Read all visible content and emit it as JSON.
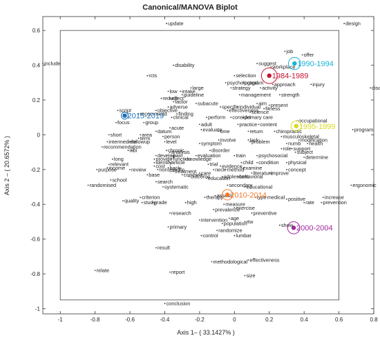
{
  "chart_data": {
    "type": "scatter",
    "title": "Canonical/MANOVA Biplot",
    "xlabel": "Axis 1– ( 33.1427% )",
    "ylabel": "Axis 2 – ( 20.6572% )",
    "xlim": [
      -1.1,
      0.8
    ],
    "ylim": [
      -1.03,
      0.68
    ],
    "xticks": [
      -1,
      -0.8,
      -0.6,
      -0.4,
      -0.2,
      0,
      0.2,
      0.4,
      0.6,
      0.8
    ],
    "xtick_labels": [
      "-1",
      "-0.8",
      "-0.6",
      "-0.4",
      "-0.2",
      "0",
      "0.2",
      "0.4",
      "0.6",
      "0.8"
    ],
    "yticks": [
      -1,
      -0.8,
      -0.6,
      -0.4,
      -0.2,
      0,
      0.2,
      0.4,
      0.6
    ],
    "ytick_labels": [
      "-1",
      "-0.8",
      "-0.6",
      "-0.4",
      "-0.2",
      "0",
      "0.2",
      "0.4",
      "0.6"
    ],
    "grid": false,
    "groups": [
      {
        "label": "1984-1989",
        "x": 0.2,
        "y": 0.34,
        "color": "#c8102e",
        "r": 0.045
      },
      {
        "label": "1990-1994",
        "x": 0.345,
        "y": 0.41,
        "color": "#1ab2d8",
        "r": 0.035
      },
      {
        "label": "1995-1999",
        "x": 0.355,
        "y": 0.05,
        "color": "#d8d820",
        "r": 0.03
      },
      {
        "label": "2000-2004",
        "x": 0.34,
        "y": -0.535,
        "color": "#a0289c",
        "r": 0.035
      },
      {
        "label": "2010-2014",
        "x": -0.04,
        "y": -0.345,
        "color": "#f07828",
        "r": 0.03
      },
      {
        "label": "2015-2019",
        "x": -0.63,
        "y": 0.11,
        "color": "#1f6fb5",
        "r": 0.02
      }
    ],
    "words": [
      {
        "t": "update",
        "x": -0.39,
        "y": 0.64
      },
      {
        "t": "design",
        "x": 0.63,
        "y": 0.64
      },
      {
        "t": "job",
        "x": 0.29,
        "y": 0.48
      },
      {
        "t": "offer",
        "x": 0.39,
        "y": 0.46
      },
      {
        "t": "include",
        "x": -1.1,
        "y": 0.41
      },
      {
        "t": "disability",
        "x": -0.35,
        "y": 0.4
      },
      {
        "t": "suggest",
        "x": 0.13,
        "y": 0.41
      },
      {
        "t": "workplace",
        "x": 0.21,
        "y": 0.39
      },
      {
        "t": "rcts",
        "x": -0.5,
        "y": 0.34
      },
      {
        "t": "selection",
        "x": 0.0,
        "y": 0.34
      },
      {
        "t": "psychological",
        "x": -0.05,
        "y": 0.3
      },
      {
        "t": "program",
        "x": 0.05,
        "y": 0.3
      },
      {
        "t": "approach",
        "x": 0.22,
        "y": 0.29
      },
      {
        "t": "injury",
        "x": 0.44,
        "y": 0.29
      },
      {
        "t": "discuss",
        "x": 0.78,
        "y": 0.27
      },
      {
        "t": "large",
        "x": -0.25,
        "y": 0.27
      },
      {
        "t": "strategy",
        "x": -0.02,
        "y": 0.27
      },
      {
        "t": "activity",
        "x": 0.15,
        "y": 0.27
      },
      {
        "t": "low",
        "x": -0.38,
        "y": 0.25
      },
      {
        "t": "intake",
        "x": -0.31,
        "y": 0.25
      },
      {
        "t": "guideline",
        "x": -0.3,
        "y": 0.23
      },
      {
        "t": "management",
        "x": 0.03,
        "y": 0.23
      },
      {
        "t": "strength",
        "x": 0.26,
        "y": 0.23
      },
      {
        "t": "reduce",
        "x": -0.42,
        "y": 0.21
      },
      {
        "t": "effect",
        "x": -0.37,
        "y": 0.21
      },
      {
        "t": "factor",
        "x": -0.35,
        "y": 0.19
      },
      {
        "t": "subacute",
        "x": -0.22,
        "y": 0.18
      },
      {
        "t": "aim",
        "x": 0.13,
        "y": 0.18
      },
      {
        "t": "present",
        "x": 0.2,
        "y": 0.17
      },
      {
        "t": "adverse",
        "x": -0.38,
        "y": 0.16
      },
      {
        "t": "specific",
        "x": -0.08,
        "y": 0.16
      },
      {
        "t": "individual",
        "x": 0.02,
        "y": 0.16
      },
      {
        "t": "fitness",
        "x": 0.17,
        "y": 0.15
      },
      {
        "t": "objective",
        "x": -0.45,
        "y": 0.14
      },
      {
        "t": "finding",
        "x": -0.33,
        "y": 0.12
      },
      {
        "t": "effectiveness",
        "x": -0.04,
        "y": 0.14
      },
      {
        "t": "science",
        "x": 0.09,
        "y": 0.13
      },
      {
        "t": "script",
        "x": -0.67,
        "y": 0.14
      },
      {
        "t": "recommend",
        "x": -0.55,
        "y": 0.12
      },
      {
        "t": "clinical",
        "x": -0.36,
        "y": 0.1
      },
      {
        "t": "perform",
        "x": -0.16,
        "y": 0.1
      },
      {
        "t": "consider",
        "x": -0.02,
        "y": 0.1
      },
      {
        "t": "primary care",
        "x": 0.05,
        "y": 0.1
      },
      {
        "t": "occupational",
        "x": 0.36,
        "y": 0.08
      },
      {
        "t": "focus",
        "x": -0.68,
        "y": 0.07
      },
      {
        "t": "group",
        "x": -0.52,
        "y": 0.07
      },
      {
        "t": "adult",
        "x": -0.2,
        "y": 0.06
      },
      {
        "t": "practice",
        "x": 0.02,
        "y": 0.06
      },
      {
        "t": "content",
        "x": 0.14,
        "y": 0.06
      },
      {
        "t": "program",
        "x": 0.68,
        "y": 0.03
      },
      {
        "t": "acute",
        "x": -0.37,
        "y": 0.04
      },
      {
        "t": "evaluate",
        "x": -0.19,
        "y": 0.03
      },
      {
        "t": "time",
        "x": -0.09,
        "y": 0.02
      },
      {
        "t": "return",
        "x": 0.08,
        "y": 0.02
      },
      {
        "t": "chiropractic",
        "x": 0.23,
        "y": 0.02
      },
      {
        "t": "short",
        "x": -0.72,
        "y": 0.0
      },
      {
        "t": "area",
        "x": -0.54,
        "y": 0.0
      },
      {
        "t": "datum",
        "x": -0.45,
        "y": 0.02
      },
      {
        "t": "musculoskeletal",
        "x": 0.27,
        "y": -0.01
      },
      {
        "t": "person",
        "x": -0.41,
        "y": -0.01
      },
      {
        "t": "lack",
        "x": 0.08,
        "y": -0.03
      },
      {
        "t": "intermediate",
        "x": -0.73,
        "y": -0.04
      },
      {
        "t": "term",
        "x": -0.55,
        "y": -0.02
      },
      {
        "t": "involve",
        "x": -0.09,
        "y": -0.03
      },
      {
        "t": "problem",
        "x": 0.09,
        "y": -0.04
      },
      {
        "t": "modification",
        "x": 0.37,
        "y": -0.03
      },
      {
        "t": "followup",
        "x": -0.6,
        "y": -0.04
      },
      {
        "t": "level",
        "x": -0.4,
        "y": -0.04
      },
      {
        "t": "numb",
        "x": 0.3,
        "y": -0.05
      },
      {
        "t": "health",
        "x": 0.42,
        "y": -0.05
      },
      {
        "t": "recommendation",
        "x": -0.76,
        "y": -0.07
      },
      {
        "t": "symptom",
        "x": -0.2,
        "y": -0.05
      },
      {
        "t": "role",
        "x": 0.27,
        "y": -0.08
      },
      {
        "t": "support",
        "x": 0.33,
        "y": -0.08
      },
      {
        "t": "chronic",
        "x": -0.39,
        "y": -0.09
      },
      {
        "t": "disorder",
        "x": -0.14,
        "y": -0.09
      },
      {
        "t": "ci",
        "x": -0.61,
        "y": -0.09
      },
      {
        "t": "bi",
        "x": -0.59,
        "y": -0.09
      },
      {
        "t": "analysis",
        "x": -0.37,
        "y": -0.1
      },
      {
        "t": "subject",
        "x": 0.35,
        "y": -0.1
      },
      {
        "t": "develop",
        "x": -0.45,
        "y": -0.12
      },
      {
        "t": "pain",
        "x": -0.36,
        "y": -0.12
      },
      {
        "t": "evaluation",
        "x": -0.22,
        "y": -0.12
      },
      {
        "t": "train",
        "x": 0.0,
        "y": -0.12
      },
      {
        "t": "psychosocial",
        "x": 0.13,
        "y": -0.12
      },
      {
        "t": "determine",
        "x": 0.4,
        "y": -0.13
      },
      {
        "t": "provide",
        "x": -0.46,
        "y": -0.14
      },
      {
        "t": "function",
        "x": -0.36,
        "y": -0.14
      },
      {
        "t": "knowledge",
        "x": -0.28,
        "y": -0.14
      },
      {
        "t": "long",
        "x": -0.7,
        "y": -0.14
      },
      {
        "t": "identify",
        "x": -0.46,
        "y": -0.16
      },
      {
        "t": "article",
        "x": -0.37,
        "y": -0.16
      },
      {
        "t": "child",
        "x": 0.04,
        "y": -0.16
      },
      {
        "t": "condition",
        "x": 0.13,
        "y": -0.16
      },
      {
        "t": "physical",
        "x": 0.3,
        "y": -0.16
      },
      {
        "t": "relevant",
        "x": -0.72,
        "y": -0.17
      },
      {
        "t": "income",
        "x": -0.73,
        "y": -0.19
      },
      {
        "t": "trial",
        "x": -0.15,
        "y": -0.17
      },
      {
        "t": "evidence",
        "x": -0.08,
        "y": -0.18
      },
      {
        "t": "cost",
        "x": -0.46,
        "y": -0.18
      },
      {
        "t": "back",
        "x": -0.38,
        "y": -0.19
      },
      {
        "t": "examine",
        "x": 0.04,
        "y": -0.19
      },
      {
        "t": "review",
        "x": -0.6,
        "y": -0.2
      },
      {
        "t": "nonspecific",
        "x": -0.44,
        "y": -0.2
      },
      {
        "t": "treatment",
        "x": -0.35,
        "y": -0.21
      },
      {
        "t": "neck",
        "x": -0.12,
        "y": -0.2
      },
      {
        "t": "method",
        "x": -0.05,
        "y": -0.2
      },
      {
        "t": "concept",
        "x": 0.3,
        "y": -0.2
      },
      {
        "t": "purpose",
        "x": -0.79,
        "y": -0.2
      },
      {
        "t": "base",
        "x": -0.5,
        "y": -0.23
      },
      {
        "t": "combine",
        "x": -0.3,
        "y": -0.23
      },
      {
        "t": "care",
        "x": -0.2,
        "y": -0.22
      },
      {
        "t": "literature",
        "x": 0.1,
        "y": -0.22
      },
      {
        "t": "improve",
        "x": 0.2,
        "y": -0.22
      },
      {
        "t": "outcome",
        "x": -0.26,
        "y": -0.24
      },
      {
        "t": "education",
        "x": -0.16,
        "y": -0.25
      },
      {
        "t": "adolescent",
        "x": -0.07,
        "y": -0.24
      },
      {
        "t": "behavioral",
        "x": 0.02,
        "y": -0.24
      },
      {
        "t": "school",
        "x": -0.71,
        "y": -0.26
      },
      {
        "t": "search",
        "x": -0.45,
        "y": -0.27
      },
      {
        "t": "randomised",
        "x": -0.84,
        "y": -0.29
      },
      {
        "t": "systematic",
        "x": -0.41,
        "y": -0.3
      },
      {
        "t": "secondary",
        "x": -0.04,
        "y": -0.29
      },
      {
        "t": "educational",
        "x": 0.06,
        "y": -0.3
      },
      {
        "t": "ergonomic",
        "x": 0.67,
        "y": -0.29
      },
      {
        "t": "criterion",
        "x": -0.54,
        "y": -0.36
      },
      {
        "t": "therapy",
        "x": -0.17,
        "y": -0.36
      },
      {
        "t": "assess",
        "x": -0.11,
        "y": -0.35
      },
      {
        "t": "type",
        "x": 0.12,
        "y": -0.36
      },
      {
        "t": "medical",
        "x": 0.18,
        "y": -0.36
      },
      {
        "t": "positive",
        "x": 0.3,
        "y": -0.37
      },
      {
        "t": "increase",
        "x": 0.51,
        "y": -0.36
      },
      {
        "t": "quality",
        "x": -0.64,
        "y": -0.38
      },
      {
        "t": "study",
        "x": -0.53,
        "y": -0.39
      },
      {
        "t": "grade",
        "x": -0.47,
        "y": -0.39
      },
      {
        "t": "high",
        "x": -0.28,
        "y": -0.39
      },
      {
        "t": "measure",
        "x": -0.06,
        "y": -0.4
      },
      {
        "t": "rate",
        "x": 0.4,
        "y": -0.39
      },
      {
        "t": "prevention",
        "x": 0.5,
        "y": -0.39
      },
      {
        "t": "exercise",
        "x": 0.0,
        "y": -0.42
      },
      {
        "t": "prevalence",
        "x": -0.12,
        "y": -0.43
      },
      {
        "t": "preventive",
        "x": 0.1,
        "y": -0.45
      },
      {
        "t": "research",
        "x": -0.37,
        "y": -0.45
      },
      {
        "t": "age",
        "x": -0.03,
        "y": -0.48
      },
      {
        "t": "intervention",
        "x": -0.2,
        "y": -0.49
      },
      {
        "t": "rtw",
        "x": 0.06,
        "y": -0.5
      },
      {
        "t": "population",
        "x": -0.07,
        "y": -0.51
      },
      {
        "t": "show",
        "x": 0.26,
        "y": -0.52
      },
      {
        "t": "primary",
        "x": -0.38,
        "y": -0.53
      },
      {
        "t": "randomize",
        "x": -0.1,
        "y": -0.55
      },
      {
        "t": "control",
        "x": -0.19,
        "y": -0.58
      },
      {
        "t": "lumbar",
        "x": 0.0,
        "y": -0.58
      },
      {
        "t": "result",
        "x": -0.45,
        "y": -0.65
      },
      {
        "t": "methodological",
        "x": -0.13,
        "y": -0.73
      },
      {
        "t": "effectiveness",
        "x": 0.08,
        "y": -0.72
      },
      {
        "t": "relate",
        "x": -0.8,
        "y": -0.78
      },
      {
        "t": "report",
        "x": -0.37,
        "y": -0.79
      },
      {
        "t": "size",
        "x": 0.06,
        "y": -0.81
      },
      {
        "t": "conclusion",
        "x": -0.4,
        "y": -0.97
      }
    ]
  }
}
